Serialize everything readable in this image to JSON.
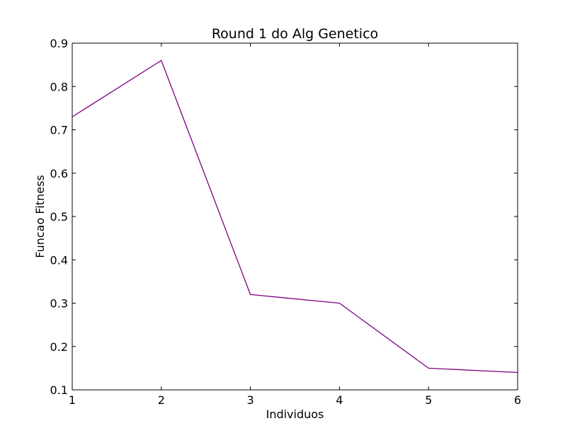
{
  "chart_data": {
    "type": "line",
    "title": "Round 1 do Alg Genetico",
    "xlabel": "Individuos",
    "ylabel": "Funcao Fitness",
    "x": [
      1,
      2,
      3,
      4,
      5,
      6
    ],
    "series": [
      {
        "values": [
          0.73,
          0.86,
          0.32,
          0.3,
          0.15,
          0.14
        ],
        "color": "#800080"
      }
    ],
    "xlim": [
      1,
      6
    ],
    "ylim": [
      0.1,
      0.9
    ],
    "xticks": [
      "1",
      "2",
      "3",
      "4",
      "5",
      "6"
    ],
    "yticks": [
      "0.1",
      "0.2",
      "0.3",
      "0.4",
      "0.5",
      "0.6",
      "0.7",
      "0.8",
      "0.9"
    ],
    "grid": false,
    "legend": "none"
  }
}
